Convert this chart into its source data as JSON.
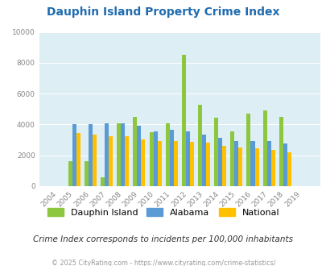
{
  "title": "Dauphin Island Property Crime Index",
  "years": [
    2004,
    2005,
    2006,
    2007,
    2008,
    2009,
    2010,
    2011,
    2012,
    2013,
    2014,
    2015,
    2016,
    2017,
    2018,
    2019
  ],
  "dauphin_island": [
    0,
    1600,
    1600,
    600,
    4100,
    4500,
    3500,
    4050,
    8500,
    5300,
    4450,
    3550,
    4700,
    4900,
    4500,
    0
  ],
  "alabama": [
    0,
    4000,
    4000,
    4050,
    4050,
    3900,
    3550,
    3650,
    3550,
    3350,
    3150,
    2950,
    2950,
    2950,
    2750,
    0
  ],
  "national": [
    0,
    3450,
    3350,
    3250,
    3250,
    3050,
    2950,
    2900,
    2850,
    2800,
    2600,
    2500,
    2450,
    2350,
    2200,
    0
  ],
  "dauphin_color": "#8dc63f",
  "alabama_color": "#5b9bd5",
  "national_color": "#ffc000",
  "bg_color": "#ddeef5",
  "title_color": "#1f6cb0",
  "ylim": [
    0,
    10000
  ],
  "yticks": [
    0,
    2000,
    4000,
    6000,
    8000,
    10000
  ],
  "subtitle": "Crime Index corresponds to incidents per 100,000 inhabitants",
  "footer": "© 2025 CityRating.com - https://www.cityrating.com/crime-statistics/",
  "legend_labels": [
    "Dauphin Island",
    "Alabama",
    "National"
  ]
}
